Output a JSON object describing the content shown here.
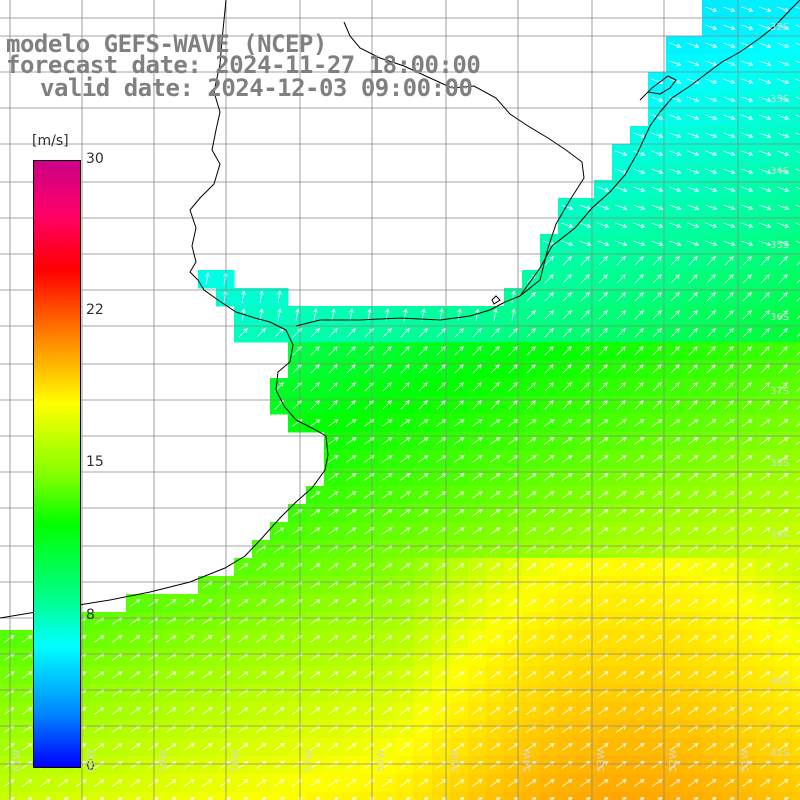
{
  "title": {
    "line1": "modelo GEFS-WAVE (NCEP)",
    "line2": "forecast date: 2024-11-27 18:00:00",
    "line3": "valid date: 2024-12-03 09:00:00"
  },
  "colorbar": {
    "units": "[m/s]",
    "ticks": [
      "30",
      "22",
      "15",
      "8",
      "0"
    ],
    "min": 0,
    "max": 30
  },
  "axes": {
    "lat_labels": [
      "32S",
      "33S",
      "34S",
      "35S",
      "36S",
      "37S",
      "38S",
      "39S",
      "40S",
      "41S"
    ],
    "lon_labels": [
      "61W",
      "60W",
      "59W",
      "58W",
      "57W",
      "56W",
      "55W",
      "54W",
      "53W",
      "52W",
      "51W"
    ]
  },
  "colors": {
    "land": "#ffffff",
    "coastline": "#000000",
    "grid": "#888888",
    "arrows": "#ffffff",
    "title_text": "#808080"
  }
}
